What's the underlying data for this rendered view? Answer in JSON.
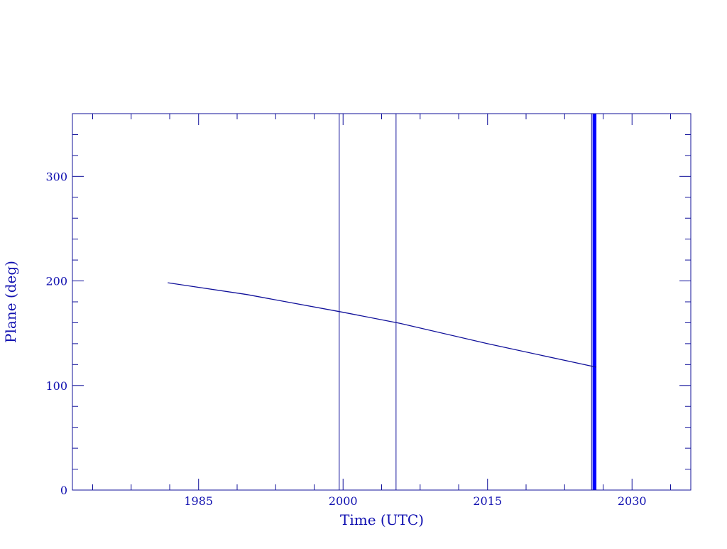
{
  "chart_data": {
    "type": "line",
    "title": "",
    "xlabel": "Time (UTC)",
    "ylabel": "Plane (deg)",
    "xlim": [
      1971.9,
      2036.1
    ],
    "ylim": [
      0,
      360
    ],
    "x_major_ticks": [
      1985,
      2000,
      2015,
      2030
    ],
    "x_minor_ticks": [
      1974,
      1978,
      1982,
      1989,
      1993,
      1997,
      2004,
      2008,
      2012,
      2019,
      2023,
      2027,
      2034
    ],
    "y_major_ticks": [
      0,
      100,
      200,
      300
    ],
    "y_minor_step": 20,
    "grid": false,
    "series": [
      {
        "x": [
          1981.8,
          1990,
          2000,
          2005.9,
          2015,
          2026.3
        ],
        "y": [
          198.3,
          187,
          170,
          159.5,
          140,
          117.5
        ],
        "color": "#10109a"
      }
    ],
    "vertical_lines": [
      {
        "x": 1999.6,
        "color": "#10109a",
        "style": "thin"
      },
      {
        "x": 2005.5,
        "color": "#10109a",
        "style": "thin"
      },
      {
        "x": 2025.8,
        "color": "#10109a",
        "style": "thin"
      },
      {
        "x_start": 2025.9,
        "x_end": 2026.3,
        "color": "#0000ff",
        "style": "band"
      }
    ],
    "axis_color": "#10109a"
  }
}
